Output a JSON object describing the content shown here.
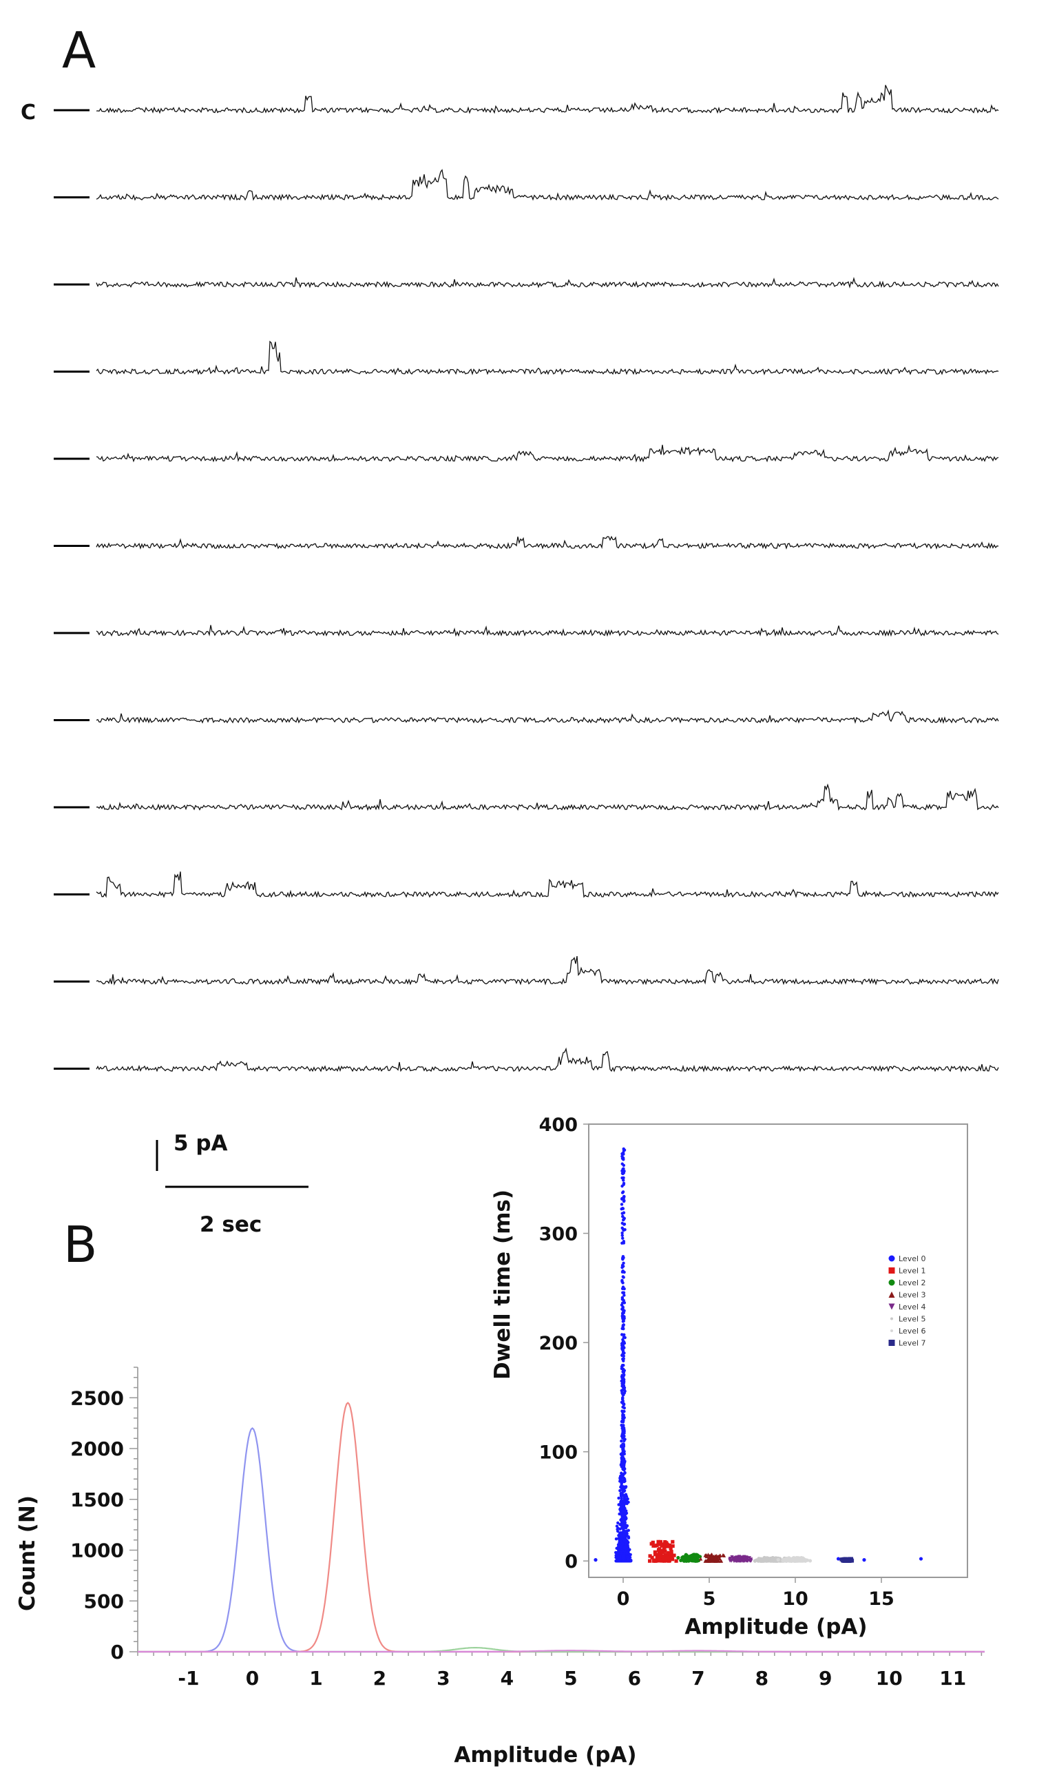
{
  "panel_a": {
    "letter": "A",
    "closed_label": "C",
    "trace_count": 12,
    "events": [
      [
        [
          0.235,
          0.17,
          0.004
        ],
        [
          0.605,
          0.05,
          0.02
        ],
        [
          0.83,
          0.18,
          0.004
        ],
        [
          0.845,
          0.22,
          0.004
        ],
        [
          0.86,
          0.12,
          0.015
        ],
        [
          0.873,
          0.18,
          0.004
        ],
        [
          0.878,
          0.27,
          0.004
        ]
      ],
      [
        [
          0.17,
          0.1,
          0.004
        ],
        [
          0.37,
          0.22,
          0.035
        ],
        [
          0.385,
          0.33,
          0.004
        ],
        [
          0.41,
          0.26,
          0.004
        ],
        [
          0.44,
          0.12,
          0.04
        ]
      ],
      [],
      [
        [
          0.195,
          0.38,
          0.005
        ],
        [
          0.2,
          0.22,
          0.004
        ]
      ],
      [
        [
          0.475,
          0.07,
          0.015
        ],
        [
          0.65,
          0.11,
          0.07
        ],
        [
          0.79,
          0.09,
          0.03
        ],
        [
          0.9,
          0.1,
          0.04
        ]
      ],
      [
        [
          0.47,
          0.09,
          0.004
        ],
        [
          0.565,
          0.12,
          0.004
        ],
        [
          0.57,
          0.1,
          0.01
        ],
        [
          0.625,
          0.09,
          0.004
        ]
      ],
      [],
      [
        [
          0.87,
          0.1,
          0.015
        ],
        [
          0.89,
          0.08,
          0.01
        ]
      ],
      [
        [
          0.81,
          0.3,
          0.004
        ],
        [
          0.81,
          0.1,
          0.02
        ],
        [
          0.857,
          0.18,
          0.004
        ],
        [
          0.88,
          0.12,
          0.004
        ],
        [
          0.89,
          0.18,
          0.004
        ],
        [
          0.96,
          0.18,
          0.03
        ]
      ],
      [
        [
          0.015,
          0.2,
          0.004
        ],
        [
          0.02,
          0.12,
          0.01
        ],
        [
          0.09,
          0.24,
          0.004
        ],
        [
          0.16,
          0.12,
          0.03
        ],
        [
          0.52,
          0.14,
          0.035
        ],
        [
          0.84,
          0.16,
          0.004
        ]
      ],
      [
        [
          0.26,
          0.09,
          0.004
        ],
        [
          0.36,
          0.08,
          0.004
        ],
        [
          0.53,
          0.29,
          0.004
        ],
        [
          0.54,
          0.15,
          0.035
        ],
        [
          0.68,
          0.13,
          0.004
        ],
        [
          0.69,
          0.1,
          0.004
        ]
      ],
      [
        [
          0.15,
          0.06,
          0.03
        ],
        [
          0.52,
          0.22,
          0.004
        ],
        [
          0.53,
          0.11,
          0.035
        ],
        [
          0.565,
          0.2,
          0.004
        ]
      ]
    ]
  },
  "scale_bar": {
    "current_label": "5 pA",
    "time_label": "2 sec"
  },
  "panel_b": {
    "letter": "B"
  },
  "chart_data": [
    {
      "type": "line",
      "xlabel": "Amplitude (pA)",
      "ylabel": "Count (N)",
      "xlim": [
        -1.8,
        11.5
      ],
      "ylim": [
        0,
        2800
      ],
      "xticks": [
        -1,
        0,
        1,
        2,
        3,
        4,
        5,
        6,
        7,
        8,
        9,
        10,
        11
      ],
      "yticks": [
        0,
        500,
        1000,
        1500,
        2000,
        2500
      ],
      "series": [
        {
          "color": "#8f94f0",
          "gaussians": [
            {
              "mu": 0,
              "sigma": 0.2,
              "amp": 2200
            }
          ]
        },
        {
          "color": "#f08a86",
          "gaussians": [
            {
              "mu": 1.5,
              "sigma": 0.2,
              "amp": 2450
            }
          ]
        },
        {
          "color": "#9cd29c",
          "gaussians": [
            {
              "mu": 3.5,
              "sigma": 0.3,
              "amp": 40
            }
          ]
        },
        {
          "color": "#d98ad9",
          "gaussians": [
            {
              "mu": 5.0,
              "sigma": 0.5,
              "amp": 12
            },
            {
              "mu": 7.0,
              "sigma": 0.5,
              "amp": 10
            }
          ]
        }
      ]
    },
    {
      "type": "scatter",
      "xlabel": "Amplitude (pA)",
      "ylabel": "Dwell time (ms)",
      "xlim": [
        -2,
        20
      ],
      "ylim": [
        -15,
        400
      ],
      "xticks": [
        0,
        5,
        10,
        15
      ],
      "yticks": [
        0,
        100,
        200,
        300,
        400
      ],
      "legend_position": "right",
      "series": [
        {
          "name": "Level 0",
          "color": "#1a1aff",
          "marker": "circle",
          "center": 0.0,
          "spread": 0.35,
          "max_dwell": 380,
          "outliers": [
            [
              12.5,
              2
            ],
            [
              13.3,
              1
            ],
            [
              14.0,
              1
            ],
            [
              17.3,
              2
            ],
            [
              -1.6,
              1
            ]
          ]
        },
        {
          "name": "Level 1",
          "color": "#e01818",
          "marker": "square",
          "center": 2.3,
          "spread": 0.6,
          "max_dwell": 18
        },
        {
          "name": "Level 2",
          "color": "#118a11",
          "marker": "circle",
          "center": 3.9,
          "spread": 0.5,
          "max_dwell": 6
        },
        {
          "name": "Level 3",
          "color": "#8b1a1a",
          "marker": "triangle-up",
          "center": 5.2,
          "spread": 0.5,
          "max_dwell": 6
        },
        {
          "name": "Level 4",
          "color": "#7a2a8a",
          "marker": "triangle-down",
          "center": 6.8,
          "spread": 0.6,
          "max_dwell": 4
        },
        {
          "name": "Level 5",
          "color": "#c9c9c9",
          "marker": "dot",
          "center": 8.5,
          "spread": 0.8,
          "max_dwell": 3
        },
        {
          "name": "Level 6",
          "color": "#d8d8d8",
          "marker": "dot",
          "center": 10.0,
          "spread": 0.8,
          "max_dwell": 3
        },
        {
          "name": "Level 7",
          "color": "#2a2a8a",
          "marker": "square",
          "center": 13.0,
          "spread": 0.3,
          "max_dwell": 2
        }
      ]
    }
  ]
}
